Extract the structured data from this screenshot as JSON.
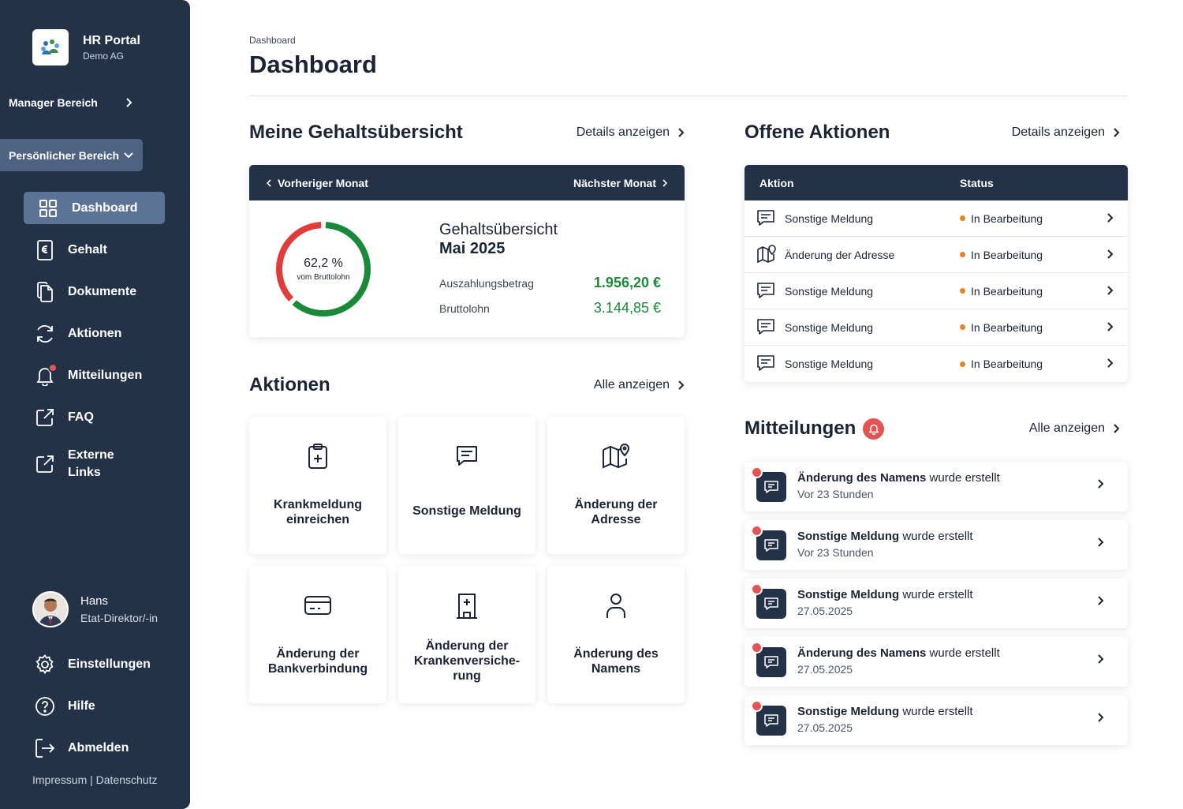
{
  "sidebar": {
    "brand": {
      "title": "HR Portal",
      "subtitle": "Demo AG"
    },
    "manager_section": "Manager Bereich",
    "personal_section": "Persönlicher Bereich",
    "nav": [
      {
        "label": "Dashboard",
        "icon": "dashboard-grid-icon"
      },
      {
        "label": "Gehalt",
        "icon": "euro-document-icon"
      },
      {
        "label": "Dokumente",
        "icon": "documents-icon"
      },
      {
        "label": "Aktionen",
        "icon": "refresh-icon"
      },
      {
        "label": "Mitteilungen",
        "icon": "bell-icon"
      },
      {
        "label": "FAQ",
        "icon": "external-link-icon"
      },
      {
        "label": "Externe Links",
        "icon": "external-link-icon"
      }
    ],
    "user": {
      "name": "Hans",
      "role": "Etat-Direktor/-in"
    },
    "bottom_nav": [
      {
        "label": "Einstellungen",
        "icon": "gear-icon"
      },
      {
        "label": "Hilfe",
        "icon": "help-icon"
      },
      {
        "label": "Abmelden",
        "icon": "logout-icon"
      }
    ],
    "legal": "Impressum | Datenschutz"
  },
  "header": {
    "breadcrumb": "Dashboard",
    "title": "Dashboard"
  },
  "salary": {
    "section_title": "Meine Gehaltsübersicht",
    "details_link": "Details anzeigen",
    "prev_month": "Vorheriger Monat",
    "next_month": "Nächster Monat",
    "percent_label": "62,2 %",
    "percent_value": 62.2,
    "percent_sub": "vom Bruttolohn",
    "card_title": "Gehaltsübersicht",
    "month": "Mai 2025",
    "payout_label": "Auszahlungsbetrag",
    "payout_value": "1.956,20 €",
    "gross_label": "Bruttolohn",
    "gross_value": "3.144,85 €",
    "colors": {
      "payout": "#1a8a3a",
      "rest": "#e03c3c"
    }
  },
  "actions": {
    "section_title": "Aktionen",
    "all_link": "Alle anzeigen",
    "tiles": [
      {
        "label": "Krankmeldung einreichen",
        "icon": "clipboard-plus-icon"
      },
      {
        "label": "Sonstige Meldung",
        "icon": "message-icon"
      },
      {
        "label": "Änderung der Adresse",
        "icon": "map-pin-icon"
      },
      {
        "label": "Änderung der Bankverbindung",
        "icon": "credit-card-icon"
      },
      {
        "label": "Änderung der Krankenversiche-rung",
        "icon": "hospital-icon"
      },
      {
        "label": "Änderung des Namens",
        "icon": "user-icon"
      }
    ]
  },
  "open_actions": {
    "section_title": "Offene Aktionen",
    "details_link": "Details anzeigen",
    "col_action": "Aktion",
    "col_status": "Status",
    "rows": [
      {
        "name": "Sonstige Meldung",
        "status": "In Bearbeitung",
        "icon": "message-icon"
      },
      {
        "name": "Änderung der Adresse",
        "status": "In Bearbeitung",
        "icon": "map-pin-icon"
      },
      {
        "name": "Sonstige Meldung",
        "status": "In Bearbeitung",
        "icon": "message-icon"
      },
      {
        "name": "Sonstige Meldung",
        "status": "In Bearbeitung",
        "icon": "message-icon"
      },
      {
        "name": "Sonstige Meldung",
        "status": "In Bearbeitung",
        "icon": "message-icon"
      }
    ]
  },
  "notifications": {
    "section_title": "Mitteilungen",
    "all_link": "Alle anzeigen",
    "suffix": "wurde erstellt",
    "items": [
      {
        "title": "Änderung des Namens",
        "time": "Vor 23 Stunden"
      },
      {
        "title": "Sonstige Meldung",
        "time": "Vor 23 Stunden"
      },
      {
        "title": "Sonstige Meldung",
        "time": "27.05.2025"
      },
      {
        "title": "Änderung des Namens",
        "time": "27.05.2025"
      },
      {
        "title": "Sonstige Meldung",
        "time": "27.05.2025"
      }
    ]
  }
}
